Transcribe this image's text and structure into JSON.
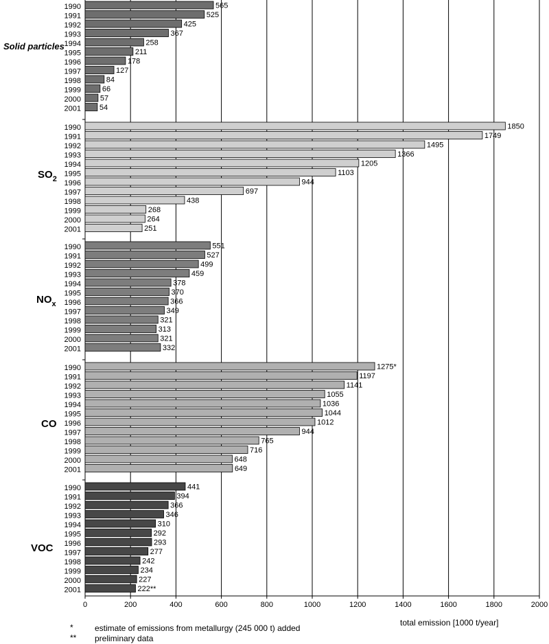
{
  "chart_data": {
    "type": "bar",
    "orientation": "horizontal",
    "xlabel": "total emission [1000 t/year]",
    "xlim": [
      0,
      2000
    ],
    "xticks": [
      "0",
      "200",
      "400",
      "600",
      "800",
      "1000",
      "1200",
      "1400",
      "1600",
      "1800",
      "2000"
    ],
    "grid": true,
    "categories": [
      "1990",
      "1991",
      "1992",
      "1993",
      "1994",
      "1995",
      "1996",
      "1997",
      "1998",
      "1999",
      "2000",
      "2001"
    ],
    "series": [
      {
        "name": "Solid particles",
        "name_sub": "",
        "italic": true,
        "color": "#6e6e6e",
        "values": [
          565,
          525,
          425,
          367,
          258,
          211,
          178,
          127,
          84,
          66,
          57,
          54
        ],
        "labels": [
          "565",
          "525",
          "425",
          "367",
          "258",
          "211",
          "178",
          "127",
          "84",
          "66",
          "57",
          "54"
        ]
      },
      {
        "name": "SO",
        "name_sub": "2",
        "italic": false,
        "color": "#cfcfcf",
        "values": [
          1850,
          1749,
          1495,
          1366,
          1205,
          1103,
          944,
          697,
          438,
          268,
          264,
          251
        ],
        "labels": [
          "1850",
          "1749",
          "1495",
          "1366",
          "1205",
          "1103",
          "944",
          "697",
          "438",
          "268",
          "264",
          "251"
        ]
      },
      {
        "name": "NO",
        "name_sub": "x",
        "italic": false,
        "color": "#7d7d7d",
        "values": [
          551,
          527,
          499,
          459,
          378,
          370,
          366,
          349,
          321,
          313,
          321,
          332
        ],
        "labels": [
          "551",
          "527",
          "499",
          "459",
          "378",
          "370",
          "366",
          "349",
          "321",
          "313",
          "321",
          "332"
        ]
      },
      {
        "name": "CO",
        "name_sub": "",
        "italic": false,
        "color": "#b0b0b0",
        "values": [
          1275,
          1197,
          1141,
          1055,
          1036,
          1044,
          1012,
          944,
          765,
          716,
          648,
          649
        ],
        "labels": [
          "1275*",
          "1197",
          "1141",
          "1055",
          "1036",
          "1044",
          "1012",
          "944",
          "765",
          "716",
          "648",
          "649"
        ]
      },
      {
        "name": "VOC",
        "name_sub": "",
        "italic": false,
        "color": "#474747",
        "values": [
          441,
          394,
          366,
          346,
          310,
          292,
          293,
          277,
          242,
          234,
          227,
          222
        ],
        "labels": [
          "441",
          "394",
          "366",
          "346",
          "310",
          "292",
          "293",
          "277",
          "242",
          "234",
          "227",
          "222**"
        ]
      }
    ]
  },
  "notes": [
    {
      "mark": "*",
      "text": "estimate of emissions from metallurgy (245 000 t) added"
    },
    {
      "mark": "**",
      "text": "preliminary data"
    }
  ]
}
